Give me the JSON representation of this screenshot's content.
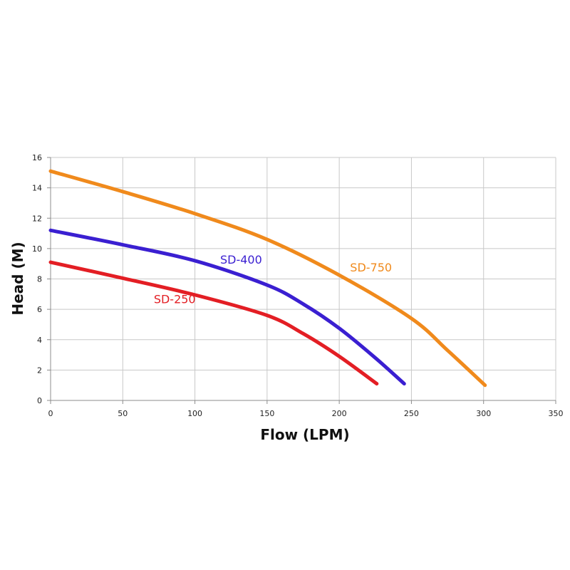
{
  "chart_data": {
    "type": "line",
    "title": "",
    "xlabel": "Flow (LPM)",
    "ylabel": "Head (M)",
    "xlim": [
      0,
      350
    ],
    "ylim": [
      0,
      16
    ],
    "xticks": [
      0,
      50,
      100,
      150,
      200,
      250,
      300,
      350
    ],
    "yticks": [
      0,
      2,
      4,
      6,
      8,
      10,
      12,
      14,
      16
    ],
    "grid": true,
    "legend": "none",
    "series": [
      {
        "name": "SD-250",
        "color": "#e31e24",
        "x": [
          0,
          50,
          100,
          150,
          175,
          200,
          226
        ],
        "y": [
          9.1,
          8.05,
          6.95,
          5.6,
          4.4,
          2.9,
          1.1
        ],
        "label_at": [
          86,
          6.4
        ]
      },
      {
        "name": "SD-400",
        "color": "#3a1fd1",
        "x": [
          0,
          50,
          100,
          150,
          175,
          200,
          225,
          245
        ],
        "y": [
          11.2,
          10.25,
          9.2,
          7.6,
          6.35,
          4.75,
          2.8,
          1.1
        ],
        "label_at": [
          132,
          9.0
        ]
      },
      {
        "name": "SD-750",
        "color": "#f08a1c",
        "x": [
          0,
          50,
          100,
          150,
          200,
          250,
          275,
          301
        ],
        "y": [
          15.1,
          13.75,
          12.3,
          10.6,
          8.25,
          5.4,
          3.3,
          1.0
        ],
        "label_at": [
          222,
          8.5
        ]
      }
    ]
  }
}
